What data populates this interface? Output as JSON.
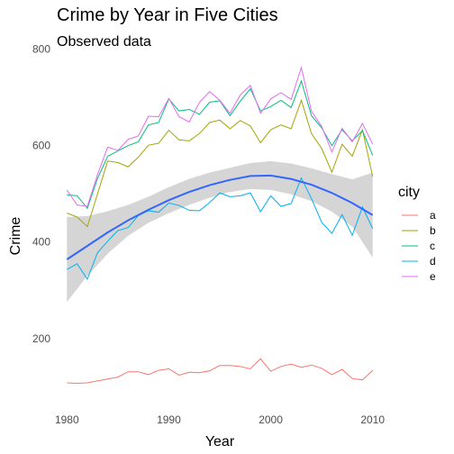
{
  "chart_data": {
    "type": "line",
    "title": "Crime by Year in Five Cities",
    "subtitle": "Observed data",
    "xlabel": "Year",
    "ylabel": "Crime",
    "xlim": [
      1979,
      2011
    ],
    "ylim": [
      80,
      790
    ],
    "x_ticks": [
      1980,
      1990,
      2000,
      2010
    ],
    "y_ticks": [
      200,
      400,
      600,
      800
    ],
    "grid": false,
    "legend": {
      "title": "city",
      "position": "right"
    },
    "x": [
      1980,
      1981,
      1982,
      1983,
      1984,
      1985,
      1986,
      1987,
      1988,
      1989,
      1990,
      1991,
      1992,
      1993,
      1994,
      1995,
      1996,
      1997,
      1998,
      1999,
      2000,
      2001,
      2002,
      2003,
      2004,
      2005,
      2006,
      2007,
      2008,
      2009,
      2010
    ],
    "series": [
      {
        "name": "a",
        "color": "#F8766D",
        "values": [
          108,
          107,
          108,
          112,
          116,
          120,
          131,
          131,
          125,
          134,
          137,
          124,
          130,
          129,
          133,
          144,
          144,
          142,
          137,
          158,
          132,
          142,
          147,
          140,
          145,
          138,
          125,
          136,
          117,
          114,
          134
        ]
      },
      {
        "name": "b",
        "color": "#A3A500",
        "values": [
          460,
          452,
          432,
          500,
          568,
          565,
          556,
          576,
          601,
          605,
          632,
          612,
          610,
          625,
          648,
          653,
          635,
          652,
          641,
          606,
          633,
          643,
          635,
          694,
          625,
          594,
          545,
          603,
          578,
          633,
          536
        ]
      },
      {
        "name": "c",
        "color": "#00BF7D",
        "values": [
          498,
          496,
          470,
          532,
          578,
          589,
          600,
          608,
          643,
          648,
          697,
          672,
          675,
          665,
          690,
          693,
          662,
          692,
          718,
          672,
          681,
          694,
          679,
          734,
          662,
          637,
          600,
          633,
          610,
          631,
          580
        ]
      },
      {
        "name": "d",
        "color": "#00B0F6",
        "values": [
          343,
          355,
          323,
          378,
          402,
          424,
          430,
          455,
          465,
          462,
          481,
          476,
          466,
          465,
          482,
          502,
          494,
          496,
          502,
          463,
          496,
          474,
          480,
          533,
          490,
          441,
          418,
          457,
          414,
          473,
          428
        ]
      },
      {
        "name": "e",
        "color": "#E76BF3",
        "values": [
          508,
          477,
          474,
          540,
          597,
          590,
          613,
          620,
          661,
          660,
          698,
          660,
          649,
          690,
          712,
          694,
          667,
          705,
          725,
          667,
          697,
          710,
          696,
          762,
          671,
          640,
          587,
          636,
          608,
          646,
          603
        ]
      }
    ],
    "smooth": {
      "color": "#3366FF",
      "band_color": "#D3D3D3",
      "values": [
        364,
        392,
        420,
        445,
        467,
        487,
        504,
        518,
        529,
        537,
        538,
        531,
        519,
        502,
        481,
        456
      ],
      "lower": [
        276,
        330,
        376,
        413,
        440,
        460,
        477,
        492,
        504,
        510,
        508,
        499,
        485,
        463,
        432,
        368
      ],
      "upper": [
        452,
        454,
        464,
        477,
        494,
        514,
        531,
        544,
        554,
        564,
        568,
        563,
        553,
        541,
        530,
        544
      ],
      "x": [
        1980,
        1982,
        1984,
        1986,
        1988,
        1990,
        1992,
        1994,
        1996,
        1998,
        2000,
        2002,
        2004,
        2006,
        2008,
        2010
      ]
    }
  }
}
